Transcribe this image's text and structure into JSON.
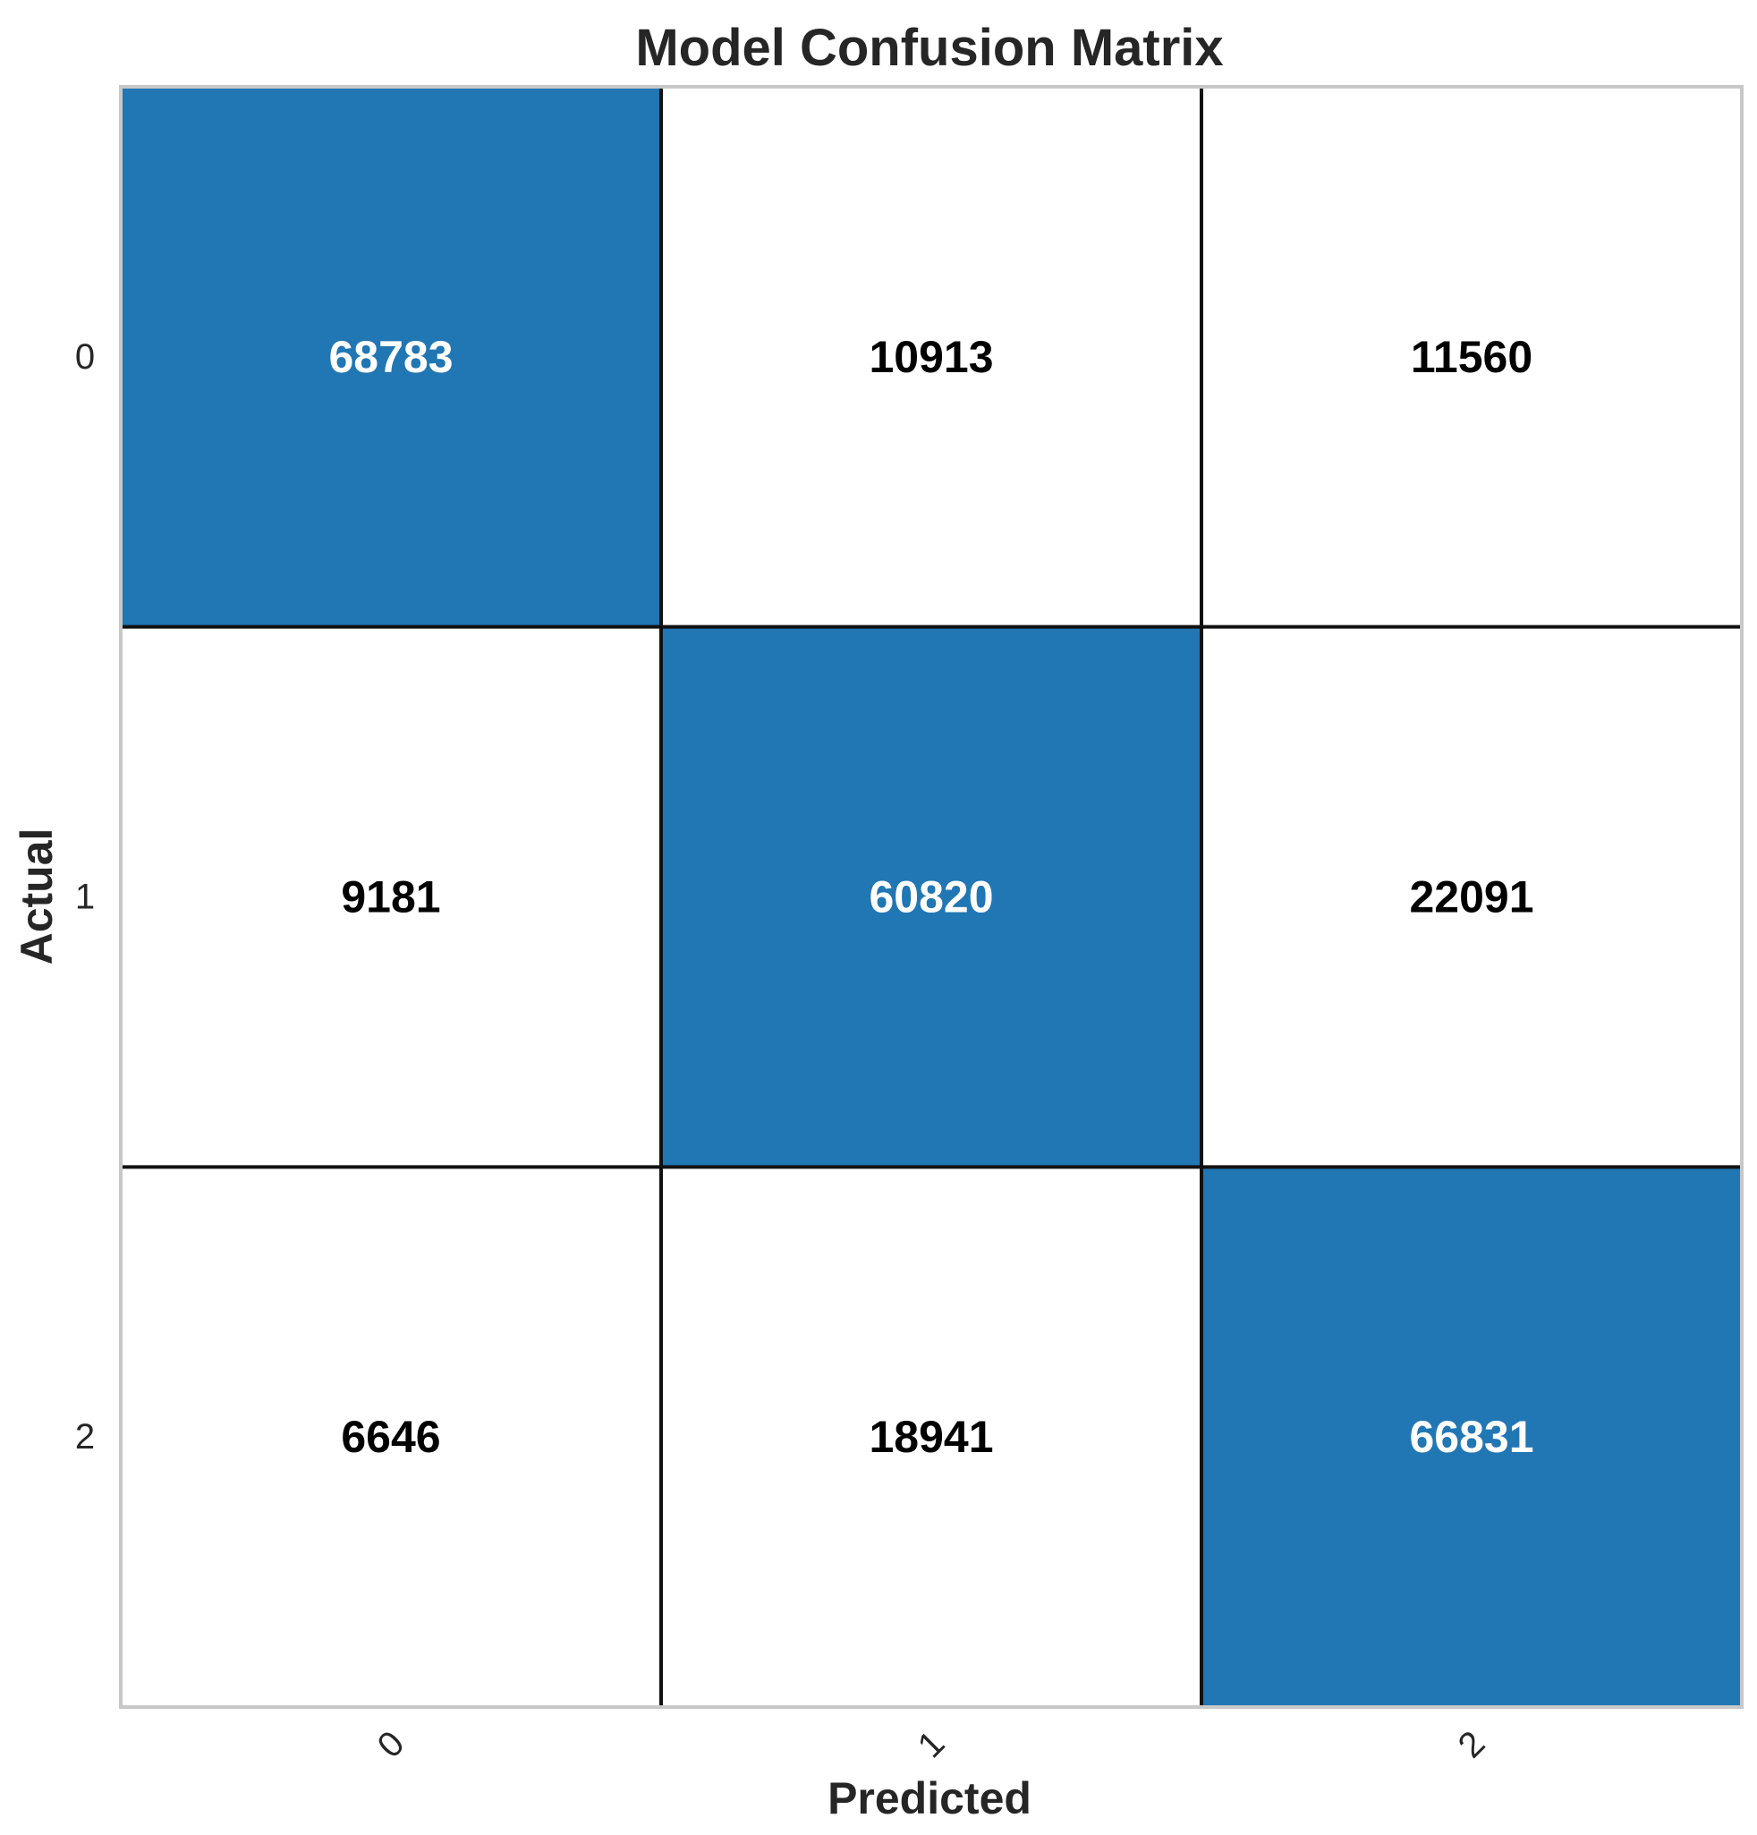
{
  "chart_data": {
    "type": "heatmap",
    "title": "Model Confusion Matrix",
    "xlabel": "Predicted",
    "ylabel": "Actual",
    "x_categories": [
      "0",
      "1",
      "2"
    ],
    "y_categories": [
      "0",
      "1",
      "2"
    ],
    "values": [
      [
        68783,
        10913,
        11560
      ],
      [
        9181,
        60820,
        22091
      ],
      [
        6646,
        18941,
        66831
      ]
    ],
    "colors": {
      "highlight": "#2176b4",
      "background": "#ffffff",
      "cell_border": "#111111",
      "frame": "#c8c8c8",
      "text_on_highlight": "#ffffff",
      "text_on_background": "#000000"
    },
    "grid": false
  }
}
